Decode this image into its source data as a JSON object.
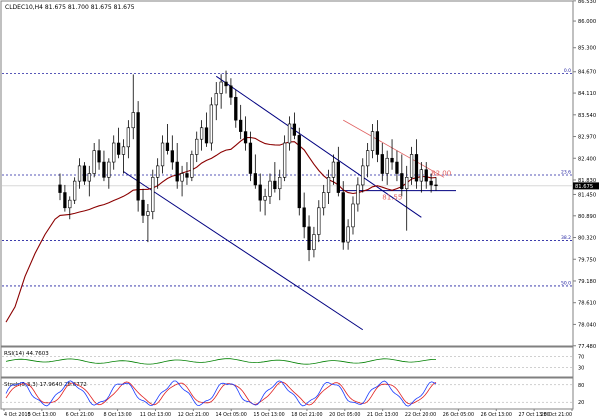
{
  "header": {
    "title": "CLDEC10,H4  81.675 81.700 81.675 81.675"
  },
  "colors": {
    "background": "#ffffff",
    "candle": "#000000",
    "ma": "#8b0000",
    "channel": "#000080",
    "level": "#2020a0",
    "resistance": "#e06060",
    "rsi": "#008000",
    "stoch_main": "#1a3cff",
    "stoch_signal": "#e02020"
  },
  "chart_data": [
    {
      "type": "candlestick",
      "title": "CLDEC10,H4  81.675 81.700 81.675 81.675",
      "ylim": [
        77.5,
        86.5
      ],
      "y_ticks": [
        "86.530",
        "86.000",
        "85.300",
        "84.670",
        "84.110",
        "83.540",
        "82.970",
        "82.400",
        "81.830",
        "81.450",
        "80.890",
        "80.320",
        "79.750",
        "79.180",
        "78.610",
        "78.040",
        "77.480"
      ],
      "x_ticks": [
        "4 Oct 2010",
        "5 Oct 13:00",
        "6 Oct 21:00",
        "8 Oct 13:00",
        "11 Oct 13:00",
        "12 Oct 21:00",
        "14 Oct 05:00",
        "15 Oct 13:00",
        "18 Oct 21:00",
        "20 Oct 05:00",
        "21 Oct 13:00",
        "22 Oct 20:00",
        "26 Oct 05:00",
        "26 Oct 13:00",
        "27 Oct 13:00",
        "28 Oct 21:00"
      ],
      "fib_levels": [
        {
          "label": "0.0",
          "value": 84.62
        },
        {
          "label": "23.6",
          "value": 81.96
        },
        {
          "label": "38.2",
          "value": 80.24
        },
        {
          "label": "50.0",
          "value": 79.05
        }
      ],
      "annotations": [
        {
          "text": "82.00",
          "value": 82.0
        },
        {
          "text": "81.55",
          "value": 81.55
        }
      ],
      "current_price": "81.675",
      "ma_label": "",
      "candles": [
        [
          81.7,
          82.0,
          81.3,
          81.5
        ],
        [
          81.5,
          81.7,
          81.0,
          81.1
        ],
        [
          81.1,
          81.4,
          80.8,
          81.3
        ],
        [
          81.3,
          81.9,
          81.2,
          81.8
        ],
        [
          81.8,
          82.4,
          81.6,
          82.2
        ],
        [
          82.2,
          82.3,
          81.7,
          81.8
        ],
        [
          81.8,
          82.2,
          81.4,
          82.0
        ],
        [
          82.0,
          82.8,
          81.9,
          82.6
        ],
        [
          82.6,
          82.9,
          82.1,
          82.3
        ],
        [
          82.3,
          82.6,
          81.8,
          81.9
        ],
        [
          81.9,
          82.4,
          81.6,
          82.3
        ],
        [
          82.3,
          83.0,
          82.1,
          82.8
        ],
        [
          82.8,
          83.2,
          82.4,
          82.5
        ],
        [
          82.5,
          82.9,
          82.0,
          82.7
        ],
        [
          82.7,
          83.4,
          82.4,
          83.2
        ],
        [
          83.2,
          84.6,
          82.9,
          83.6
        ],
        [
          83.6,
          83.9,
          81.0,
          81.3
        ],
        [
          81.3,
          81.6,
          80.7,
          80.9
        ],
        [
          80.9,
          81.2,
          80.2,
          81.0
        ],
        [
          81.0,
          82.1,
          80.8,
          81.9
        ],
        [
          81.9,
          82.4,
          81.6,
          82.2
        ],
        [
          82.2,
          83.0,
          82.0,
          82.8
        ],
        [
          82.8,
          83.3,
          82.5,
          82.6
        ],
        [
          82.6,
          83.0,
          82.1,
          82.3
        ],
        [
          82.3,
          82.8,
          81.6,
          81.8
        ],
        [
          81.8,
          82.2,
          81.4,
          82.0
        ],
        [
          82.0,
          82.3,
          81.7,
          81.9
        ],
        [
          81.9,
          82.6,
          81.8,
          82.5
        ],
        [
          82.5,
          83.1,
          82.3,
          82.9
        ],
        [
          82.9,
          83.4,
          82.6,
          83.2
        ],
        [
          83.2,
          83.6,
          82.7,
          82.8
        ],
        [
          82.8,
          84.0,
          82.6,
          83.8
        ],
        [
          83.8,
          84.4,
          83.4,
          84.1
        ],
        [
          84.1,
          84.6,
          83.7,
          84.4
        ],
        [
          84.4,
          84.7,
          84.1,
          84.3
        ],
        [
          84.3,
          84.5,
          83.8,
          84.0
        ],
        [
          84.0,
          84.2,
          83.2,
          83.4
        ],
        [
          83.4,
          83.8,
          82.9,
          83.1
        ],
        [
          83.1,
          83.5,
          82.6,
          82.8
        ],
        [
          82.8,
          83.1,
          81.8,
          82.0
        ],
        [
          82.0,
          82.5,
          81.6,
          81.7
        ],
        [
          81.7,
          82.0,
          81.0,
          81.3
        ],
        [
          81.3,
          81.6,
          80.9,
          81.4
        ],
        [
          81.4,
          82.0,
          81.2,
          81.8
        ],
        [
          81.8,
          82.3,
          81.5,
          81.6
        ],
        [
          81.6,
          82.1,
          81.3,
          81.9
        ],
        [
          81.9,
          83.0,
          81.8,
          82.8
        ],
        [
          82.8,
          83.5,
          82.6,
          83.3
        ],
        [
          83.3,
          83.6,
          82.9,
          83.0
        ],
        [
          83.0,
          83.2,
          80.9,
          81.1
        ],
        [
          81.1,
          81.5,
          80.3,
          80.6
        ],
        [
          80.6,
          80.9,
          79.7,
          80.0
        ],
        [
          80.0,
          80.6,
          79.8,
          80.4
        ],
        [
          80.4,
          81.3,
          80.2,
          81.1
        ],
        [
          81.1,
          81.7,
          80.9,
          81.5
        ],
        [
          81.5,
          82.1,
          81.2,
          81.9
        ],
        [
          81.9,
          82.5,
          81.7,
          82.3
        ],
        [
          82.3,
          82.7,
          81.4,
          81.5
        ],
        [
          81.5,
          81.8,
          80.0,
          80.2
        ],
        [
          80.2,
          80.8,
          80.0,
          80.6
        ],
        [
          80.6,
          81.4,
          80.4,
          81.2
        ],
        [
          81.2,
          81.9,
          81.0,
          81.7
        ],
        [
          81.7,
          82.4,
          81.5,
          82.2
        ],
        [
          82.2,
          82.8,
          81.9,
          82.6
        ],
        [
          82.6,
          83.3,
          82.4,
          83.1
        ],
        [
          83.1,
          83.4,
          82.3,
          82.5
        ],
        [
          82.5,
          82.8,
          81.8,
          82.0
        ],
        [
          82.0,
          82.6,
          81.7,
          82.4
        ],
        [
          82.4,
          82.9,
          82.1,
          82.3
        ],
        [
          82.3,
          82.6,
          81.8,
          82.0
        ],
        [
          82.0,
          82.5,
          81.4,
          81.6
        ],
        [
          81.6,
          82.2,
          80.5,
          81.9
        ],
        [
          81.9,
          82.7,
          81.7,
          82.5
        ],
        [
          82.5,
          82.9,
          81.6,
          81.8
        ],
        [
          81.8,
          82.3,
          81.5,
          82.1
        ],
        [
          82.1,
          82.3,
          81.6,
          81.8
        ],
        [
          81.8,
          82.0,
          81.5,
          81.7
        ],
        [
          81.7,
          81.9,
          81.55,
          81.68
        ]
      ]
    },
    {
      "type": "line",
      "title": "RSI(14) 44.7603",
      "ylim": [
        0,
        100
      ],
      "y_ticks": [
        "70",
        "30"
      ],
      "series": []
    },
    {
      "type": "line",
      "title": "Stoch(5,3,3) 17.9640 25.6772",
      "ylim": [
        0,
        100
      ],
      "y_ticks": [
        "80",
        "20"
      ],
      "series": []
    }
  ]
}
